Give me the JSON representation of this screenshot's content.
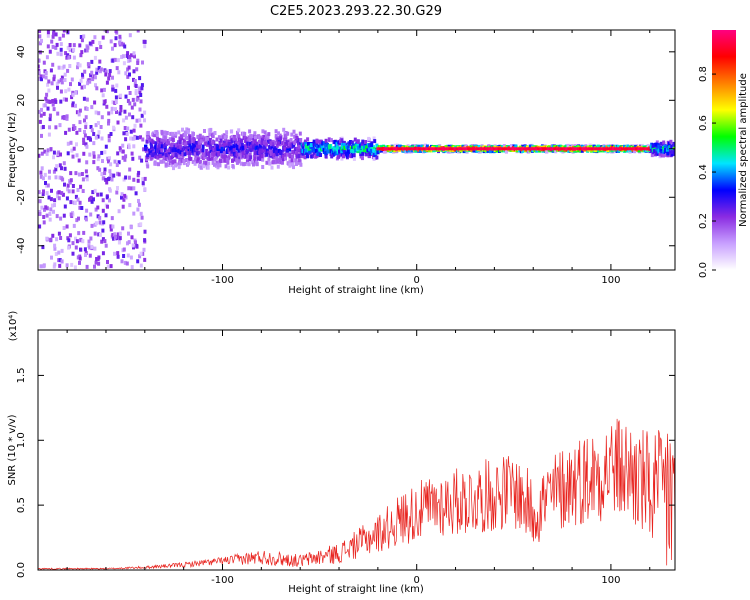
{
  "title": "C2E5.2023.293.22.30.G29",
  "chart_data": [
    {
      "type": "heatmap",
      "name": "spectrogram",
      "xlabel": "Height of straight line (km)",
      "ylabel": "Frequency (Hz)",
      "xlim": [
        -195,
        133
      ],
      "ylim": [
        -50,
        49
      ],
      "xticks": [
        -100,
        0,
        100
      ],
      "yticks": [
        -40,
        -20,
        0,
        20,
        40
      ],
      "colorbar": {
        "label": "Normalized spectral amplitude",
        "range": [
          0.0,
          0.98
        ],
        "ticks": [
          0.0,
          0.2,
          0.4,
          0.6,
          0.8
        ],
        "tick_labels": [
          "0.0",
          "0.2",
          "0.4",
          "0.6",
          "0.8"
        ],
        "colormap": [
          "#ffffff",
          "#c8a0ff",
          "#8a2be2",
          "#0000ff",
          "#00e5ff",
          "#00ff00",
          "#ffff00",
          "#ff8000",
          "#ff0000",
          "#ff0080"
        ]
      },
      "zones": [
        {
          "x_from": -195,
          "x_to": -140,
          "freq_spread": 49,
          "amplitude": 0.15,
          "description": "scattered noise"
        },
        {
          "x_from": -140,
          "x_to": -60,
          "freq_spread": 8,
          "amplitude": 0.3
        },
        {
          "x_from": -60,
          "x_to": -20,
          "freq_spread": 4,
          "amplitude": 0.5
        },
        {
          "x_from": -20,
          "x_to": 120,
          "freq_spread": 1,
          "amplitude": 0.9
        },
        {
          "x_from": 120,
          "x_to": 133,
          "freq_spread": 3,
          "amplitude": 0.5
        }
      ]
    },
    {
      "type": "line",
      "name": "snr",
      "xlabel": "Height of straight line (km)",
      "ylabel": "SNR (10 * v/v)",
      "y_multiplier": "(x10⁴)",
      "xlim": [
        -195,
        133
      ],
      "ylim": [
        0,
        1.85
      ],
      "xticks": [
        -100,
        0,
        100
      ],
      "yticks": [
        0.0,
        0.5,
        1.0,
        1.5
      ],
      "ytick_labels": [
        "0.0",
        "0.5",
        "1.0",
        "1.5"
      ],
      "color": "#e8231e",
      "series": [
        {
          "x": [
            -195,
            -180,
            -160,
            -140,
            -120,
            -100,
            -80,
            -60,
            -40,
            -20,
            -5,
            10,
            30,
            50,
            60,
            70,
            80,
            90,
            100,
            110,
            120,
            125,
            130,
            133
          ],
          "y_mean": [
            0.01,
            0.01,
            0.01,
            0.02,
            0.04,
            0.07,
            0.1,
            0.07,
            0.13,
            0.28,
            0.42,
            0.5,
            0.55,
            0.62,
            0.45,
            0.58,
            0.68,
            0.72,
            0.8,
            0.75,
            0.62,
            0.58,
            0.6,
            0.55
          ],
          "y_amp": [
            0.005,
            0.005,
            0.005,
            0.01,
            0.02,
            0.03,
            0.06,
            0.05,
            0.08,
            0.15,
            0.22,
            0.25,
            0.28,
            0.3,
            0.28,
            0.32,
            0.35,
            0.37,
            0.4,
            0.42,
            0.45,
            0.5,
            0.85,
            0.6
          ]
        }
      ]
    }
  ]
}
